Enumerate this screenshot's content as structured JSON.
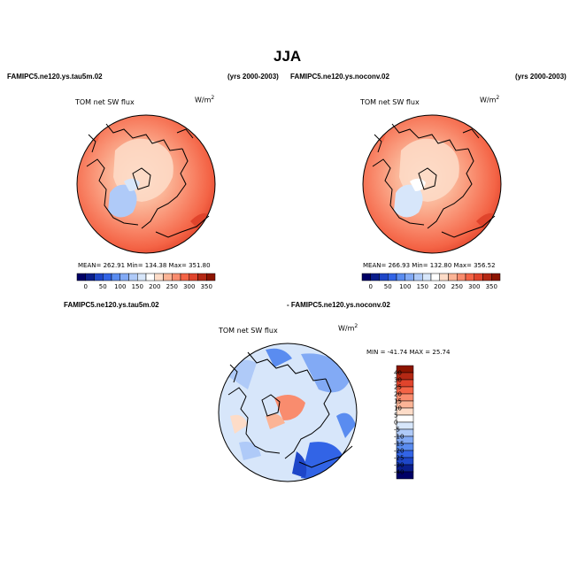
{
  "figure": {
    "title": "JJA"
  },
  "panels": [
    {
      "case_label": "FAMIPC5.ne120.ys.tau5m.02",
      "years_label": "(yrs 2000-2003)",
      "variable": "TOM net SW flux",
      "units_base": "W/m",
      "units_exp": "2",
      "stats": {
        "mean": "262.91",
        "min": "134.38",
        "max": "351.80"
      },
      "stats_text": "MEAN= 262.91   Min= 134.38   Max= 351.80"
    },
    {
      "case_label": "FAMIPC5.ne120.ys.noconv.02",
      "years_label": "(yrs 2000-2003)",
      "variable": "TOM net SW flux",
      "units_base": "W/m",
      "units_exp": "2",
      "stats": {
        "mean": "266.93",
        "min": "132.80",
        "max": "356.52"
      },
      "stats_text": "MEAN= 266.93   Min= 132.80   Max= 356.52"
    }
  ],
  "diff_panel": {
    "case_left": "FAMIPC5.ne120.ys.tau5m.02",
    "case_right": "- FAMIPC5.ne120.ys.noconv.02",
    "variable": "TOM net SW flux",
    "units_base": "W/m",
    "units_exp": "2",
    "minmax_text": "MIN = -41.74  MAX =  25.74",
    "minmax": {
      "min": "-41.74",
      "max": "25.74"
    }
  },
  "colorbar_abs": {
    "tick_labels": [
      "0",
      "50",
      "100",
      "150",
      "200",
      "250",
      "300",
      "350"
    ],
    "colors": [
      "#000066",
      "#0a1e8c",
      "#1e46c8",
      "#3264e6",
      "#5a8cf0",
      "#82aaf5",
      "#afcaf8",
      "#d7e6fa",
      "#ffffff",
      "#fddcc8",
      "#fbb496",
      "#f98c6e",
      "#f46446",
      "#e0442c",
      "#b42814",
      "#8c1400"
    ]
  },
  "colorbar_diff": {
    "tick_labels": [
      "40",
      "30",
      "25",
      "20",
      "15",
      "10",
      "5",
      "0",
      "-5",
      "-10",
      "-15",
      "-20",
      "-25",
      "-30",
      "-40"
    ],
    "colors": [
      "#8c1400",
      "#b42814",
      "#e0442c",
      "#f46446",
      "#f98c6e",
      "#fbb496",
      "#fddcc8",
      "#ffffff",
      "#d7e6fa",
      "#afcaf8",
      "#82aaf5",
      "#5a8cf0",
      "#3264e6",
      "#1e46c8",
      "#0a1e8c",
      "#000066"
    ]
  }
}
